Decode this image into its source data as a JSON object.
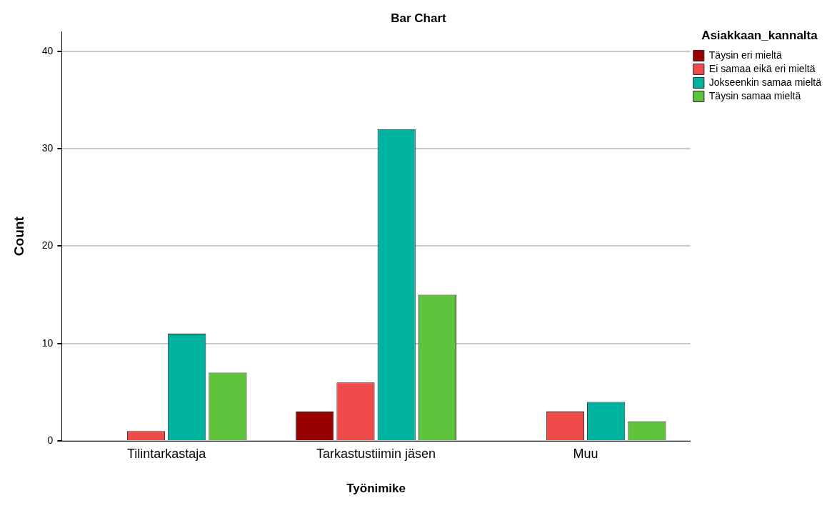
{
  "chart_data": {
    "type": "bar",
    "title": "Bar Chart",
    "xlabel": "Työnimike",
    "ylabel": "Count",
    "legend_title": "Asiakkaan_kannalta",
    "categories": [
      "Tilintarkastaja",
      "Tarkastustiimin jäsen",
      "Muu"
    ],
    "series": [
      {
        "name": "Täysin eri mieltä",
        "color": "#990000",
        "values": [
          null,
          3,
          null
        ]
      },
      {
        "name": "Ei samaa eikä eri mieltä",
        "color": "#ef4b4b",
        "values": [
          1,
          6,
          3
        ]
      },
      {
        "name": "Jokseenkin samaa mieltä",
        "color": "#00b3a1",
        "values": [
          11,
          32,
          4
        ]
      },
      {
        "name": "Täysin samaa mieltä",
        "color": "#5fc33b",
        "values": [
          7,
          15,
          2
        ]
      }
    ],
    "ylim": [
      0,
      42
    ],
    "yticks": [
      0,
      10,
      20,
      30,
      40
    ],
    "grid": "y",
    "legend": "top right"
  }
}
